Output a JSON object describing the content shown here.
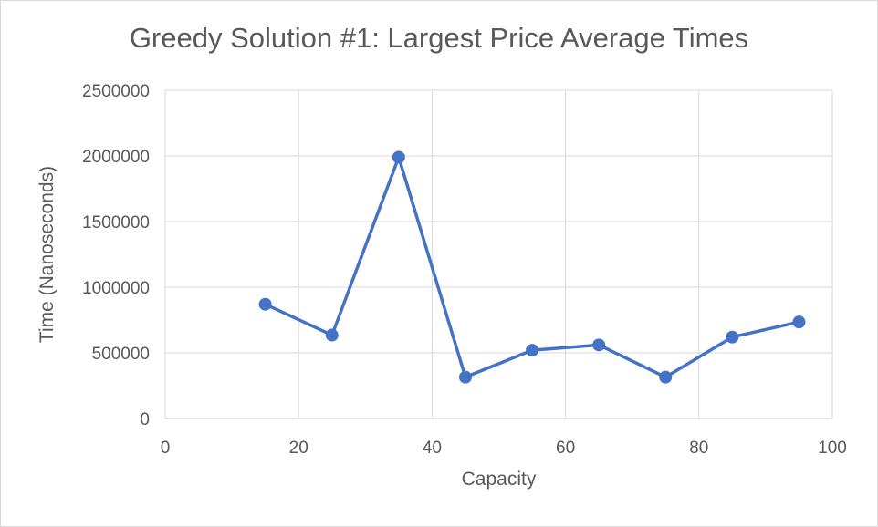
{
  "chart_data": {
    "type": "scatter",
    "title": "Greedy Solution #1: Largest Price Average Times",
    "xlabel": "Capacity",
    "ylabel": "Time (Nanoseconds)",
    "xlim": [
      0,
      100
    ],
    "ylim": [
      0,
      2500000
    ],
    "x_ticks": [
      0,
      20,
      40,
      60,
      80,
      100
    ],
    "y_ticks": [
      0,
      500000,
      1000000,
      1500000,
      2000000,
      2500000
    ],
    "x_tick_labels": [
      "0",
      "20",
      "40",
      "60",
      "80",
      "100"
    ],
    "y_tick_labels": [
      "0",
      "500000",
      "1000000",
      "1500000",
      "2000000",
      "2500000"
    ],
    "grid": true,
    "legend": "none",
    "series": [
      {
        "color": "#4472c4",
        "marker": "circle",
        "line": "straight",
        "x": [
          15,
          25,
          35,
          45,
          55,
          65,
          75,
          85,
          95
        ],
        "y": [
          870000,
          635000,
          1990000,
          315000,
          520000,
          560000,
          315000,
          620000,
          735000
        ]
      }
    ]
  }
}
